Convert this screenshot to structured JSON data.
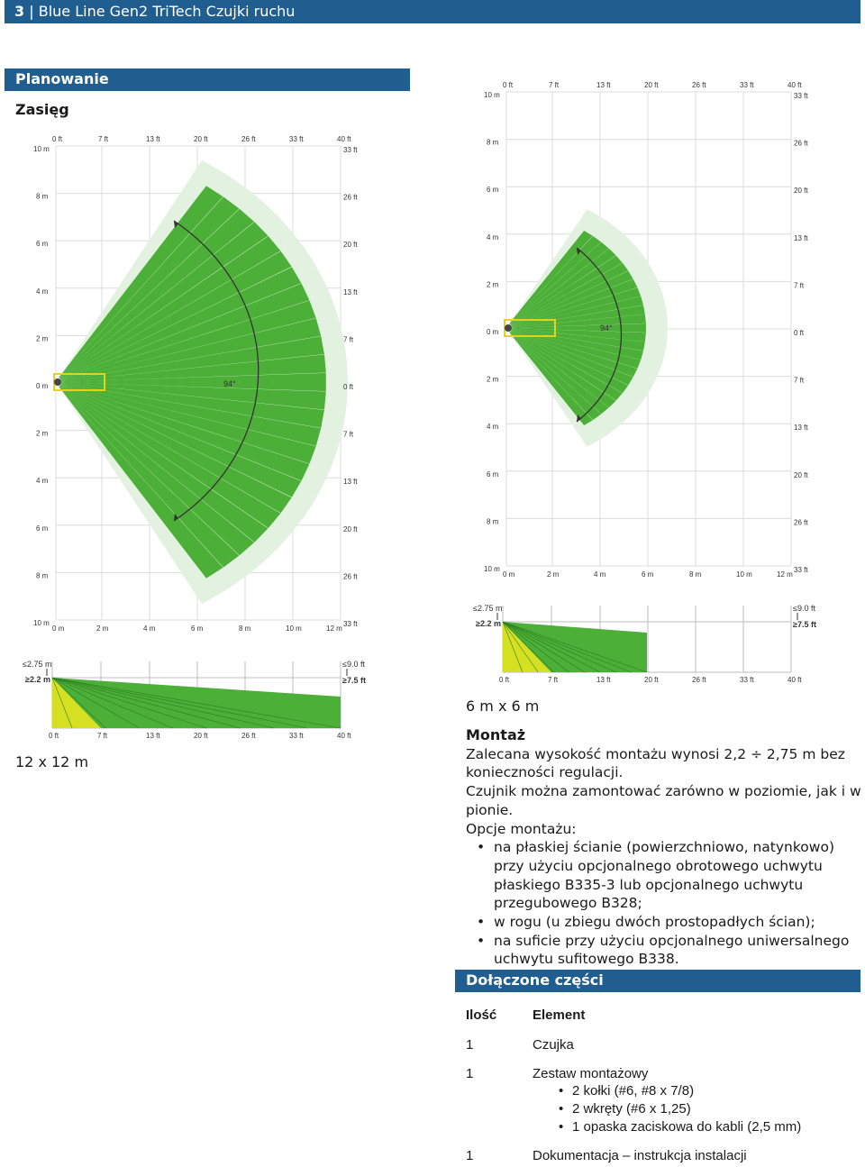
{
  "header": {
    "page_number": "3",
    "separator": "|",
    "title": "Blue Line Gen2 TriTech Czujki ruchu"
  },
  "section_planning": "Planowanie",
  "heading_range": "Zasięg",
  "left_diagram": {
    "caption": "12 x 12 m",
    "angle": "94°",
    "top_ft": [
      "0 ft",
      "7 ft",
      "13 ft",
      "20 ft",
      "26 ft",
      "33 ft",
      "40 ft"
    ],
    "rows": [
      {
        "m": "10 m",
        "ft": "33 ft"
      },
      {
        "m": "8 m",
        "ft": "26 ft"
      },
      {
        "m": "6 m",
        "ft": "20 ft"
      },
      {
        "m": "4 m",
        "ft": "13 ft"
      },
      {
        "m": "2 m",
        "ft": "7 ft"
      },
      {
        "m": "0 m",
        "ft": "0 ft"
      },
      {
        "m": "2 m",
        "ft": "7 ft"
      },
      {
        "m": "4 m",
        "ft": "13 ft"
      },
      {
        "m": "6 m",
        "ft": "20 ft"
      },
      {
        "m": "8 m",
        "ft": "26 ft"
      },
      {
        "m": "10 m",
        "ft": "33 ft"
      }
    ],
    "bottom_m": [
      "0 m",
      "2 m",
      "4 m",
      "6 m",
      "8 m",
      "10 m",
      "12 m"
    ],
    "side": {
      "max_m": "≤2.75 m",
      "min_m": "≥2.2 m",
      "max_ft": "≤9.0 ft",
      "min_ft": "≥7.5 ft",
      "bottom_ft": [
        "0 ft",
        "7 ft",
        "13 ft",
        "20 ft",
        "26 ft",
        "33 ft",
        "40 ft"
      ]
    }
  },
  "right_diagram": {
    "caption": "6 m x 6 m",
    "angle": "94°",
    "top_ft": [
      "0 ft",
      "7 ft",
      "13 ft",
      "20 ft",
      "26 ft",
      "33 ft",
      "40 ft"
    ],
    "rows": [
      {
        "m": "10 m",
        "ft": "33 ft"
      },
      {
        "m": "8 m",
        "ft": "26 ft"
      },
      {
        "m": "6 m",
        "ft": "20 ft"
      },
      {
        "m": "4 m",
        "ft": "13 ft"
      },
      {
        "m": "2 m",
        "ft": "7 ft"
      },
      {
        "m": "0 m",
        "ft": "0 ft"
      },
      {
        "m": "2 m",
        "ft": "7 ft"
      },
      {
        "m": "4 m",
        "ft": "13 ft"
      },
      {
        "m": "6 m",
        "ft": "20 ft"
      },
      {
        "m": "8 m",
        "ft": "26 ft"
      },
      {
        "m": "10 m",
        "ft": "33 ft"
      }
    ],
    "bottom_m": [
      "0 m",
      "2 m",
      "4 m",
      "6 m",
      "8 m",
      "10 m",
      "12 m"
    ],
    "side": {
      "max_m": "≤2.75 m",
      "min_m": "≥2.2 m",
      "max_ft": "≤9.0 ft",
      "min_ft": "≥7.5 ft",
      "bottom_ft": [
        "0 ft",
        "7 ft",
        "13 ft",
        "20 ft",
        "26 ft",
        "33 ft",
        "40 ft"
      ]
    }
  },
  "mounting": {
    "title": "Montaż",
    "p1": "Zalecana wysokość montażu wynosi 2,2 ÷ 2,75 m bez konieczności regulacji.",
    "p2": "Czujnik można zamontować zarówno w poziomie, jak i w pionie.",
    "options_title": "Opcje montażu:",
    "options": [
      "na płaskiej ścianie (powierzchniowo, natynkowo) przy użyciu opcjonalnego obrotowego uchwytu płaskiego B335-3 lub opcjonalnego uchwytu przegubowego B328;",
      "w rogu (u zbiegu dwóch prostopadłych ścian);",
      "na suficie przy użyciu opcjonalnego uniwersalnego uchwytu sufitowego B338."
    ]
  },
  "included_parts": {
    "title": "Dołączone części",
    "col_qty": "Ilość",
    "col_element": "Element",
    "rows": [
      {
        "qty": "1",
        "element": "Czujka",
        "sub": []
      },
      {
        "qty": "1",
        "element": "Zestaw montażowy",
        "sub": [
          "2 kołki (#6, #8 x 7/8)",
          "2 wkręty (#6 x 1,25)",
          "1 opaska zaciskowa do kabli (2,5 mm)"
        ]
      },
      {
        "qty": "1",
        "element": "Dokumentacja – instrukcja instalacji",
        "sub": []
      }
    ]
  },
  "colors": {
    "brand": "#1f5e8e",
    "beam": "#4caf37",
    "halo": "#e3f2e0",
    "sensor_box": "#e5d21a",
    "side_yellow": "#d4e021"
  }
}
